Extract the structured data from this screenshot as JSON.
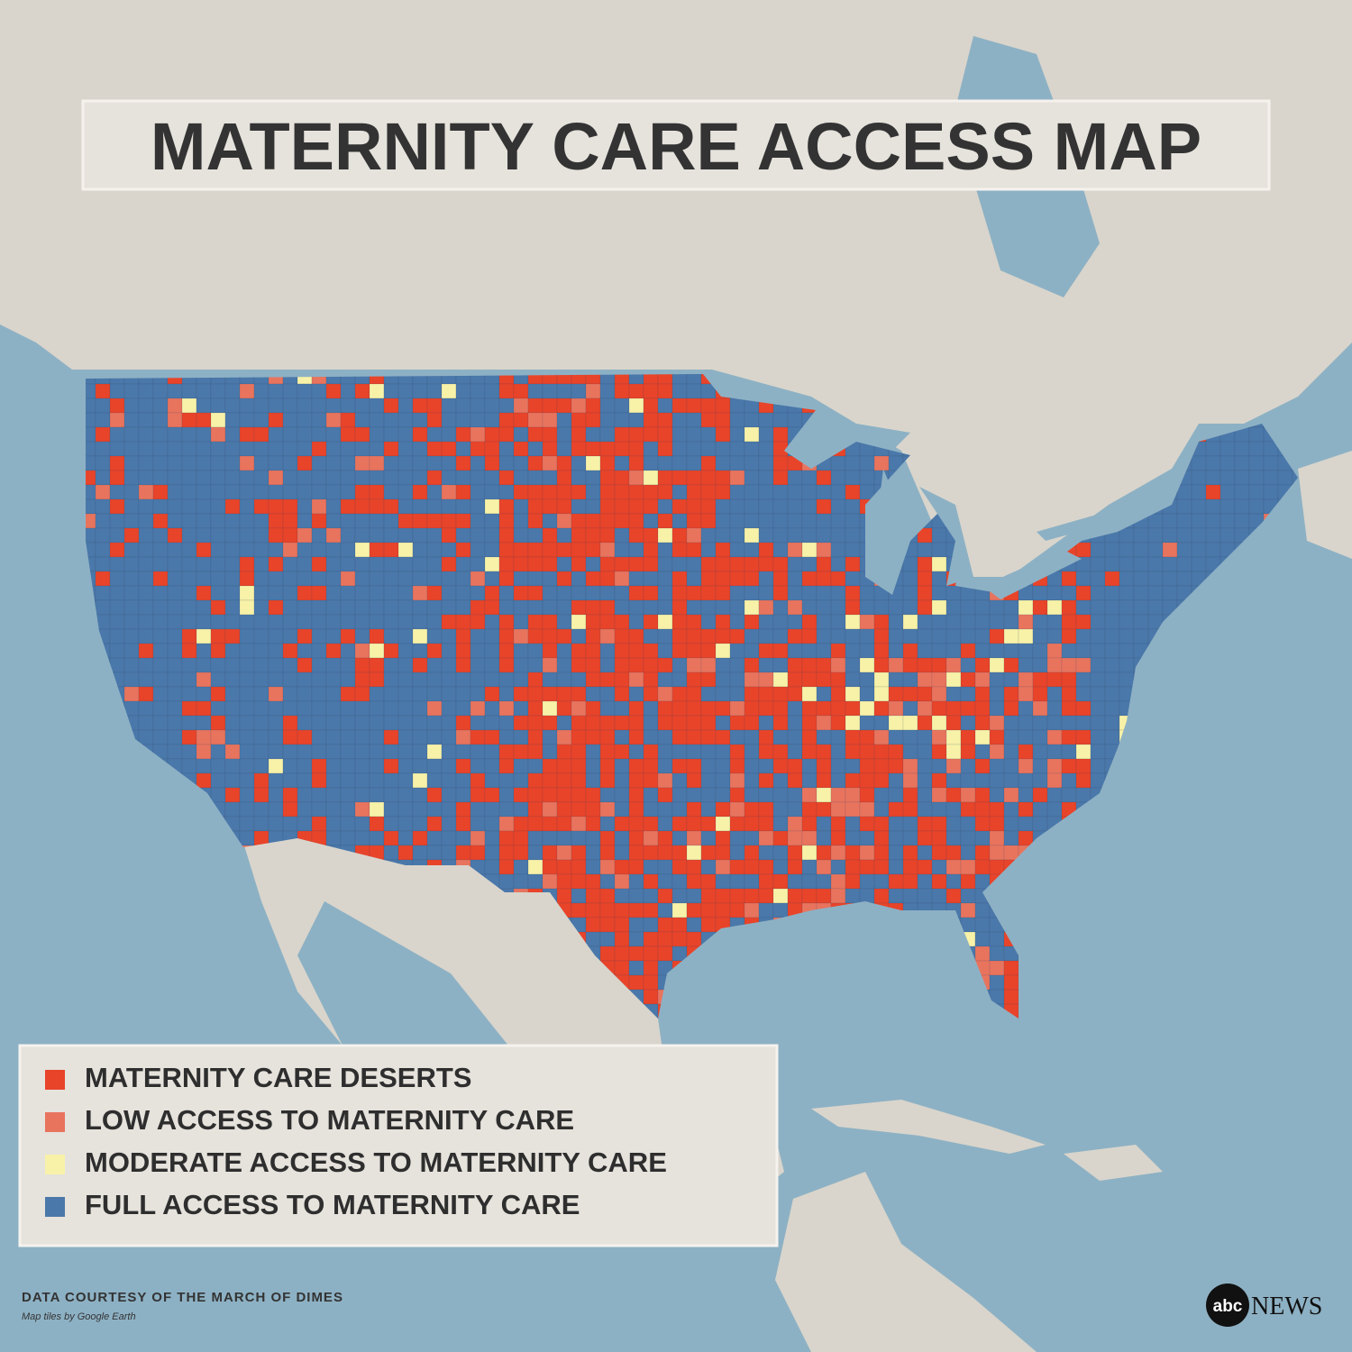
{
  "title": "MATERNITY CARE ACCESS MAP",
  "legend": [
    {
      "label": "MATERNITY CARE DESERTS",
      "color": "#e8442a"
    },
    {
      "label": "LOW ACCESS TO MATERNITY CARE",
      "color": "#e8745e"
    },
    {
      "label": "MODERATE ACCESS TO MATERNITY CARE",
      "color": "#f7f2a8"
    },
    {
      "label": "FULL ACCESS TO MATERNITY CARE",
      "color": "#4a78aa"
    }
  ],
  "credits": {
    "data": "DATA COURTESY OF THE MARCH OF DIMES",
    "tiles": "Map tiles by Google Earth"
  },
  "logo": {
    "mark": "abc",
    "text": "NEWS"
  }
}
